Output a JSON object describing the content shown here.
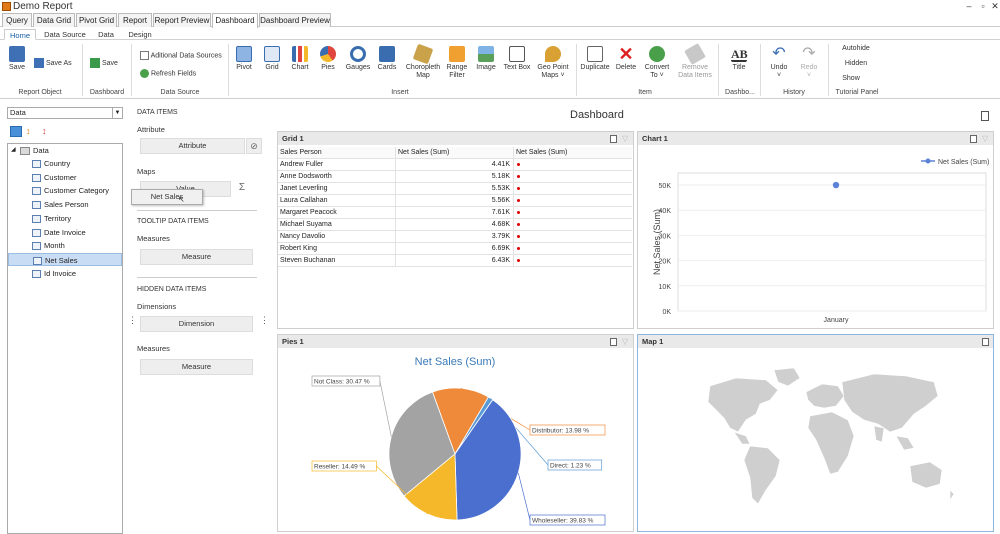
{
  "window": {
    "title": "Demo Report"
  },
  "main_tabs": [
    "Query",
    "Data Grid",
    "Pivot Grid",
    "Report",
    "Report Preview",
    "Dashboard",
    "Dashboard Preview"
  ],
  "ribbon_tabs": [
    "Home",
    "Data Source",
    "Data",
    "Design"
  ],
  "ribbon": {
    "save": "Save",
    "save_as": "Save As",
    "save2": "Save",
    "additional_sources": "Aditional Data Sources",
    "refresh_fields": "Refresh Fields",
    "pivot": "Pivot",
    "grid": "Grid",
    "chart": "Chart",
    "pies": "Pies",
    "gauges": "Gauges",
    "cards": "Cards",
    "choropleth": "Choropleth",
    "choropleth2": "Map",
    "range": "Range",
    "range2": "Filter",
    "image": "Image",
    "textbox": "Text Box",
    "geopoint": "Geo Point",
    "geopoint2": "Maps ˅",
    "duplicate": "Duplicate",
    "delete": "Delete",
    "convert": "Convert",
    "convert2": "To ˅",
    "remove": "Remove",
    "remove2": "Data Items",
    "title_btn": "Title",
    "undo": "Undo",
    "undo2": "˅",
    "redo": "Redo",
    "redo2": "˅",
    "autohide": "Autohide",
    "hidden": "Hidden",
    "show": "Show",
    "groups": {
      "report_object": "Report Object",
      "dashboard": "Dashboard",
      "data_source": "Data Source",
      "insert": "Insert",
      "item": "Item",
      "dashbo": "Dashbo...",
      "history": "History",
      "tutorial": "Tutorial Panel"
    }
  },
  "left": {
    "datasource_value": "Data",
    "tree_root": "Data",
    "fields": [
      "Country",
      "Customer",
      "Customer Category",
      "Sales Person",
      "Territory",
      "Date Invoice",
      "Month",
      "Net Sales",
      "Id Invoice"
    ]
  },
  "dataitems": {
    "header": "DATA ITEMS",
    "attribute": "Attribute",
    "attribute_slot": "Attribute",
    "maps": "Maps",
    "value_slot": "Value",
    "drag_label": "Net Sales",
    "tooltip_header": "TOOLTIP DATA ITEMS",
    "measures": "Measures",
    "measure_slot": "Measure",
    "hidden_header": "HIDDEN DATA ITEMS",
    "dimensions": "Dimensions",
    "dimension_slot": "Dimension",
    "measures2": "Measures",
    "measure_slot2": "Measure"
  },
  "dashboard": {
    "title": "Dashboard"
  },
  "grid": {
    "title": "Grid 1",
    "columns": [
      "Sales Person",
      "Net Sales (Sum)",
      "Net Sales (Sum)"
    ],
    "rows": [
      {
        "name": "Andrew Fuller",
        "value": "4.41K"
      },
      {
        "name": "Anne Dodsworth",
        "value": "5.18K"
      },
      {
        "name": "Janet Leverling",
        "value": "5.53K"
      },
      {
        "name": "Laura Callahan",
        "value": "5.56K"
      },
      {
        "name": "Margaret Peacock",
        "value": "7.61K"
      },
      {
        "name": "Michael Suyama",
        "value": "4.68K"
      },
      {
        "name": "Nancy Davolio",
        "value": "3.79K"
      },
      {
        "name": "Robert King",
        "value": "6.69K"
      },
      {
        "name": "Steven Buchanan",
        "value": "6.43K"
      }
    ]
  },
  "chart_panel": {
    "title": "Chart 1"
  },
  "pies_panel": {
    "title": "Pies 1"
  },
  "map_panel": {
    "title": "Map 1"
  },
  "chart_data": [
    {
      "type": "scatter",
      "title": "",
      "categories": [
        "January"
      ],
      "series": [
        {
          "name": "Net Sales (Sum)",
          "values": [
            49980
          ]
        }
      ],
      "ylabel": "Net Sales (Sum)",
      "yticks": [
        "0K",
        "10K",
        "20K",
        "30K",
        "40K",
        "50K"
      ],
      "ylim": [
        0,
        50000
      ],
      "legend": "top-right",
      "color": "#5b82d6"
    },
    {
      "type": "pie",
      "title": "Net Sales (Sum)",
      "categories": [
        "Not Class",
        "Distributor",
        "Direct",
        "Wholeseller",
        "Reseller"
      ],
      "values": [
        30.47,
        13.98,
        1.23,
        39.83,
        14.49
      ],
      "labels": [
        "Not Class: 30.47 %",
        "Distributor: 13.98 %",
        "Direct: 1.23 %",
        "Wholeseller: 39.83 %",
        "Reseller: 14.49 %"
      ],
      "colors": [
        "#a3a3a3",
        "#ef8a3a",
        "#5b9bd5",
        "#4a6fcf",
        "#f5b82a"
      ]
    }
  ]
}
